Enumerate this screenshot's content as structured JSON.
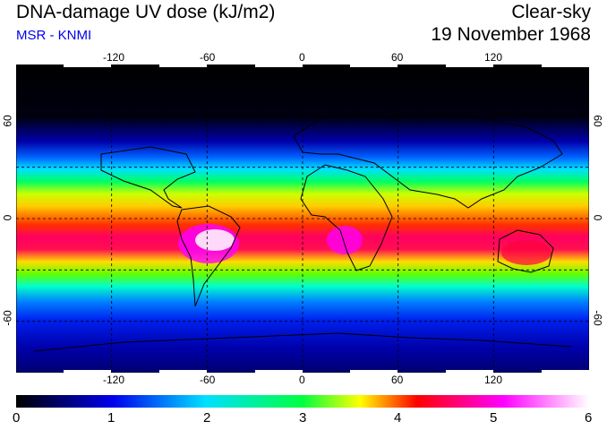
{
  "header": {
    "title": "DNA-damage UV dose (kJ/m2)",
    "source": "MSR - KNMI",
    "mode": "Clear-sky",
    "date": "19 November 1968"
  },
  "map": {
    "projection": "equirectangular",
    "lon_range": [
      -180,
      180
    ],
    "lat_range": [
      -90,
      90
    ],
    "lon_ticks": [
      "-120",
      "-60",
      "0",
      "60",
      "120"
    ],
    "lat_ticks": [
      "60",
      "0",
      "-60"
    ],
    "grid": "dashed graticule every 30 degrees",
    "field": "DNA-damage UV dose",
    "value_range": [
      0,
      6
    ]
  },
  "colorbar": {
    "ticks": [
      "0",
      "1",
      "2",
      "3",
      "4",
      "5",
      "6"
    ],
    "colors": [
      "#000000",
      "#0000ee",
      "#00e0ff",
      "#00ff40",
      "#ffff00",
      "#ff0000",
      "#ff00ff",
      "#ffffff"
    ]
  }
}
